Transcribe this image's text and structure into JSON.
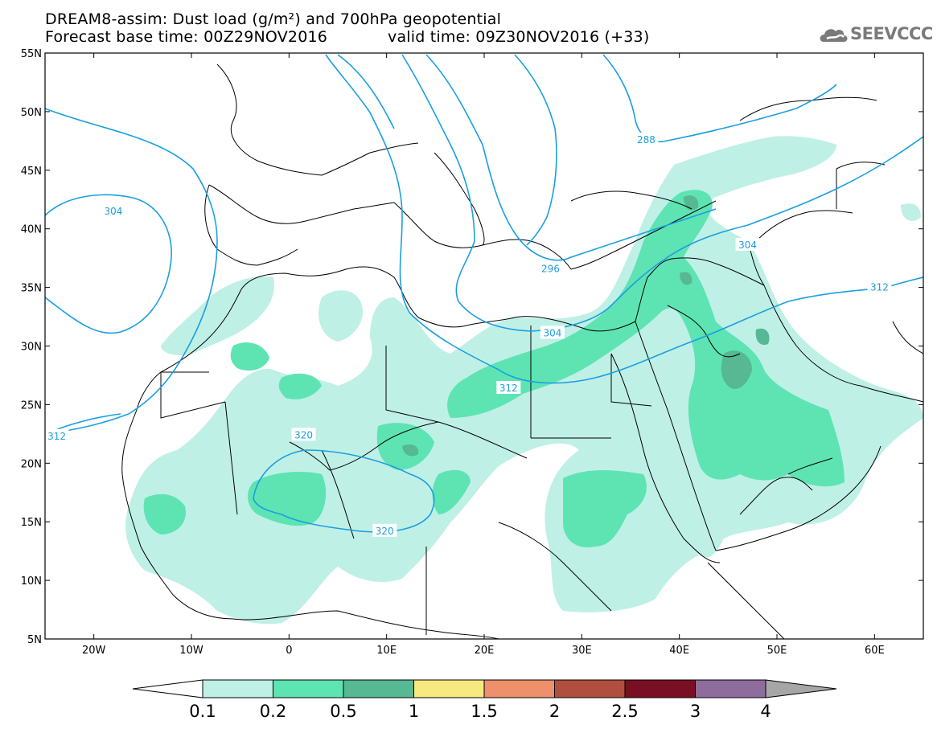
{
  "header": {
    "title_line1": "DREAM8-assim: Dust load (g/m²) and 700hPa geopotential",
    "title_line2": "Forecast base time: 00Z29NOV2016",
    "valid_time": "valid time: 09Z30NOV2016 (+33)",
    "logo_text": "SEEVCCC",
    "logo_icon": "cloud-logo-icon"
  },
  "map": {
    "lat_labels": [
      "55N",
      "50N",
      "45N",
      "40N",
      "35N",
      "30N",
      "25N",
      "20N",
      "15N",
      "10N",
      "5N"
    ],
    "lon_labels": [
      "20W",
      "10W",
      "0",
      "10E",
      "20E",
      "30E",
      "40E",
      "50E",
      "60E"
    ],
    "lon_values": [
      -20,
      -10,
      0,
      10,
      20,
      30,
      40,
      50,
      60
    ],
    "lat_values": [
      55,
      50,
      45,
      40,
      35,
      30,
      25,
      20,
      15,
      10,
      5
    ],
    "extent": {
      "lon_min": -25,
      "lon_max": 65,
      "lat_min": 5,
      "lat_max": 55
    },
    "contour_labels": [
      {
        "text": "304",
        "lon": -18.0,
        "lat": 41.5
      },
      {
        "text": "288",
        "lon": 36.6,
        "lat": 47.6
      },
      {
        "text": "304",
        "lon": 47.0,
        "lat": 38.6
      },
      {
        "text": "312",
        "lon": 60.5,
        "lat": 35.0
      },
      {
        "text": "296",
        "lon": 26.8,
        "lat": 36.6
      },
      {
        "text": "304",
        "lon": 27.0,
        "lat": 31.1
      },
      {
        "text": "312",
        "lon": 22.5,
        "lat": 26.4
      },
      {
        "text": "312",
        "lon": -23.8,
        "lat": 22.3
      },
      {
        "text": "320",
        "lon": 1.5,
        "lat": 22.4
      },
      {
        "text": "320",
        "lon": 9.8,
        "lat": 14.2
      }
    ]
  },
  "colorbar": {
    "labels": [
      "0.1",
      "0.2",
      "0.5",
      "1",
      "1.5",
      "2",
      "2.5",
      "3",
      "4"
    ],
    "colors": [
      "#bff0e6",
      "#5ee4b3",
      "#57b894",
      "#f7e981",
      "#ee906b",
      "#b04f40",
      "#7a0f24",
      "#8e6c9c",
      "#a6a6a6"
    ]
  },
  "colors": {
    "contour": "#1a9fe0",
    "dust_light": "#bff0e6",
    "dust_mid": "#5ee4b3",
    "dust_dark": "#57b894"
  }
}
